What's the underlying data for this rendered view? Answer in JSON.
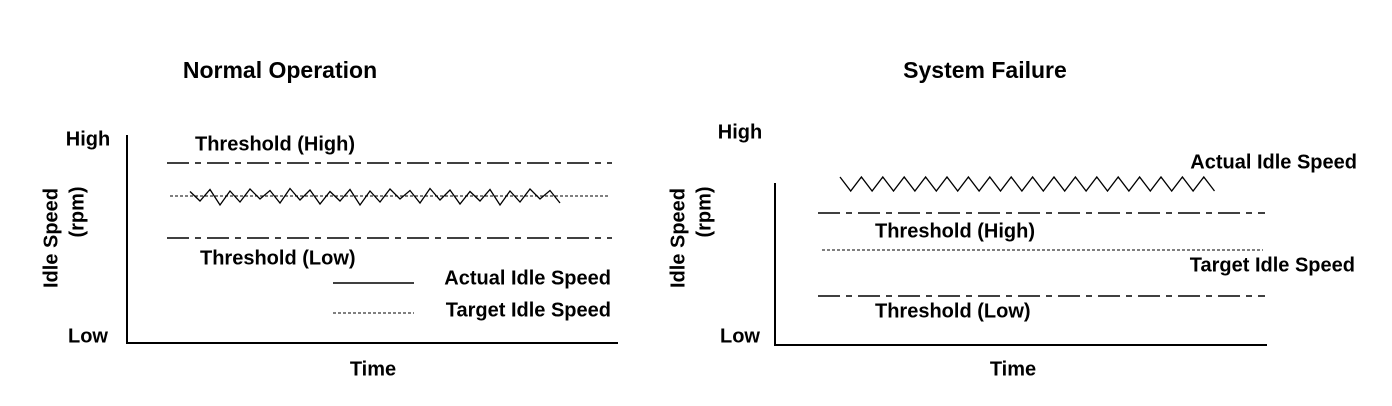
{
  "panels": [
    {
      "title": "Normal Operation",
      "y_high": "High",
      "y_low": "Low",
      "y_label_lines": [
        "Idle Speed",
        "(rpm)"
      ],
      "x_label": "Time",
      "threshold_high": "Threshold (High)",
      "threshold_low": "Threshold (Low)",
      "legend": [
        "Actual Idle Speed",
        "Target Idle Speed"
      ]
    },
    {
      "title": "System Failure",
      "y_high": "High",
      "y_low": "Low",
      "y_label_lines": [
        "Idle Speed",
        "(rpm)"
      ],
      "x_label": "Time",
      "threshold_high": "Threshold (High)",
      "threshold_low": "Threshold (Low)",
      "actual_label": "Actual Idle Speed",
      "target_label": "Target Idle Speed"
    }
  ]
}
